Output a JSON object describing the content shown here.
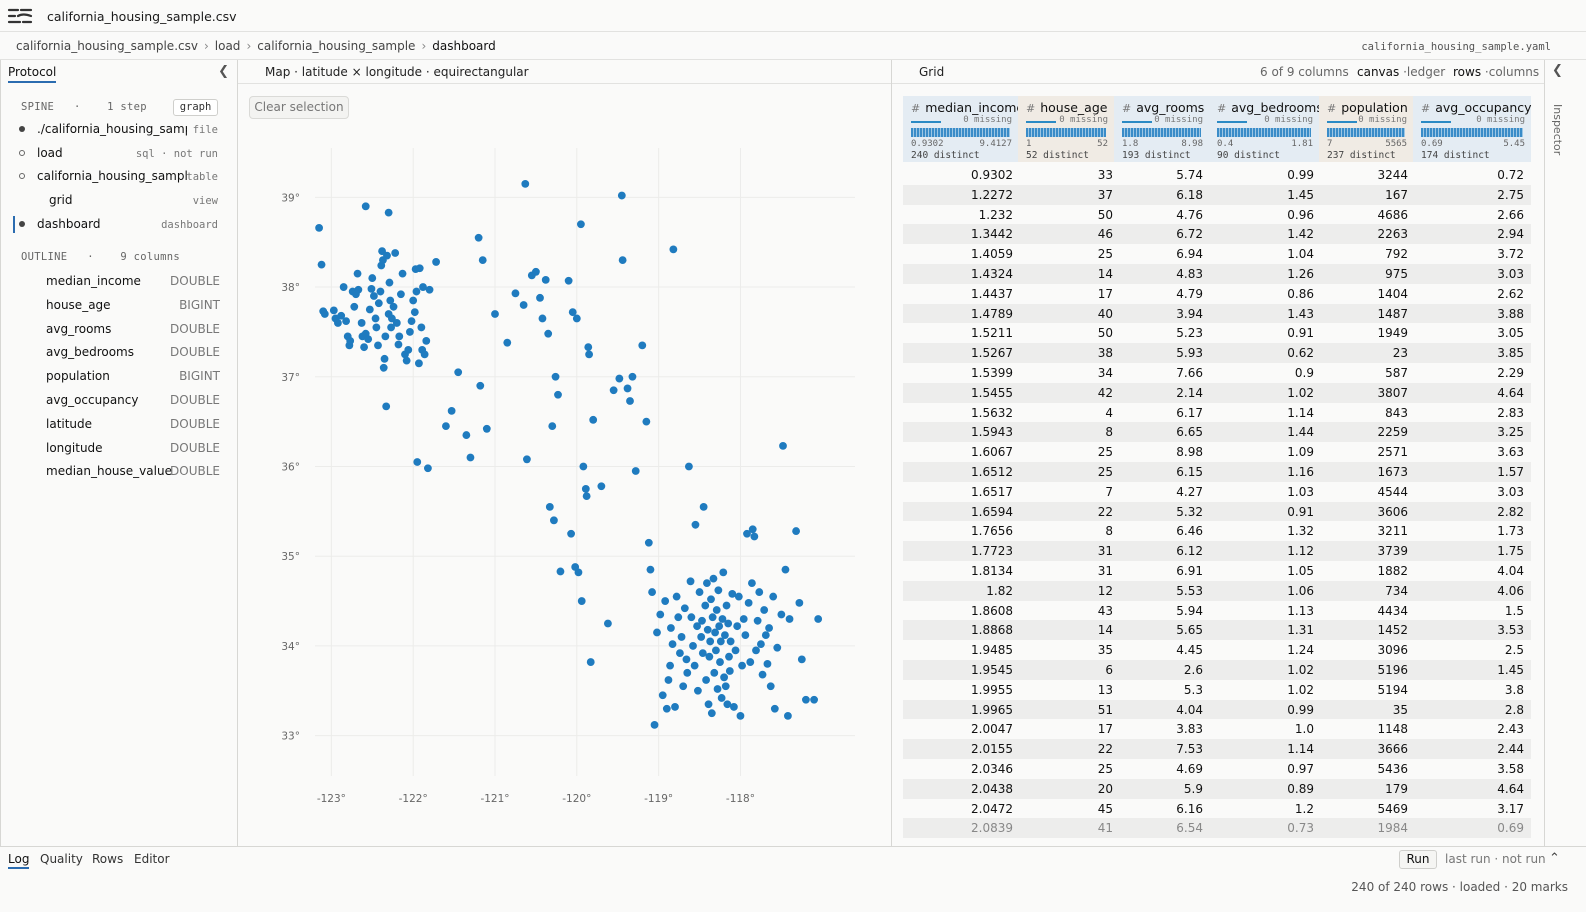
{
  "app": {
    "title": "california_housing_sample.csv",
    "logo_icon": "menu-logo-icon"
  },
  "breadcrumb": [
    "california_housing_sample.csv",
    "load",
    "california_housing_sample",
    "dashboard"
  ],
  "breadcrumb_separator": "›",
  "yaml_file": "california_housing_sample.yaml",
  "left_panel": {
    "tab": "Protocol",
    "spine_label": "SPINE",
    "spine_dot": "·",
    "spine_count": "1 step",
    "graph_button": "graph",
    "spine": [
      {
        "label": "./california_housing_sample.csv",
        "kind": "file",
        "marker": "filled"
      },
      {
        "label": "load",
        "kind": "sql · not run",
        "marker": "hollow"
      },
      {
        "label": "california_housing_sample",
        "kind": "table",
        "marker": "hollow"
      },
      {
        "label": "grid",
        "kind": "view",
        "marker": "none"
      },
      {
        "label": "dashboard",
        "kind": "dashboard",
        "marker": "active"
      }
    ],
    "outline_label": "OUTLINE",
    "outline_dot": "·",
    "outline_count": "9 columns",
    "outline": [
      {
        "name": "median_income",
        "type": "DOUBLE"
      },
      {
        "name": "house_age",
        "type": "BIGINT"
      },
      {
        "name": "avg_rooms",
        "type": "DOUBLE"
      },
      {
        "name": "avg_bedrooms",
        "type": "DOUBLE"
      },
      {
        "name": "population",
        "type": "BIGINT"
      },
      {
        "name": "avg_occupancy",
        "type": "DOUBLE"
      },
      {
        "name": "latitude",
        "type": "DOUBLE"
      },
      {
        "name": "longitude",
        "type": "DOUBLE"
      },
      {
        "name": "median_house_value",
        "type": "DOUBLE"
      }
    ]
  },
  "map": {
    "title": "Map · latitude × longitude · equirectangular",
    "clear_button": "Clear selection"
  },
  "chart_data": {
    "type": "scatter",
    "title": "Map · latitude × longitude · equirectangular",
    "xlabel": "",
    "ylabel": "",
    "xlim": [
      -123.2,
      -116.6
    ],
    "ylim": [
      32.55,
      39.55
    ],
    "x_ticks": [
      -123,
      -122,
      -121,
      -120,
      -119,
      -118
    ],
    "x_tick_labels": [
      "-123°",
      "-122°",
      "-121°",
      "-120°",
      "-119°",
      "-118°"
    ],
    "y_ticks": [
      33,
      34,
      35,
      36,
      37,
      38,
      39
    ],
    "y_tick_labels": [
      "33°",
      "34°",
      "35°",
      "36°",
      "37°",
      "38°",
      "39°"
    ],
    "grid": true,
    "color": "#1f7bbf",
    "points": [
      [
        -123.15,
        38.66
      ],
      [
        -123.12,
        38.25
      ],
      [
        -123.1,
        37.73
      ],
      [
        -123.08,
        37.7
      ],
      [
        -122.97,
        37.74
      ],
      [
        -122.95,
        37.65
      ],
      [
        -122.92,
        37.6
      ],
      [
        -122.88,
        37.68
      ],
      [
        -122.85,
        38.0
      ],
      [
        -122.82,
        37.62
      ],
      [
        -122.8,
        37.45
      ],
      [
        -122.78,
        37.35
      ],
      [
        -122.77,
        37.4
      ],
      [
        -122.74,
        37.95
      ],
      [
        -122.72,
        37.78
      ],
      [
        -122.7,
        37.92
      ],
      [
        -122.68,
        38.15
      ],
      [
        -122.67,
        37.97
      ],
      [
        -122.63,
        37.6
      ],
      [
        -122.62,
        37.45
      ],
      [
        -122.6,
        37.33
      ],
      [
        -122.58,
        37.48
      ],
      [
        -122.55,
        37.42
      ],
      [
        -122.53,
        37.75
      ],
      [
        -122.51,
        37.98
      ],
      [
        -122.5,
        38.1
      ],
      [
        -122.48,
        37.9
      ],
      [
        -122.46,
        37.65
      ],
      [
        -122.45,
        37.55
      ],
      [
        -122.43,
        37.35
      ],
      [
        -122.42,
        37.82
      ],
      [
        -122.4,
        37.95
      ],
      [
        -122.39,
        38.24
      ],
      [
        -122.38,
        38.4
      ],
      [
        -122.37,
        38.3
      ],
      [
        -122.36,
        37.1
      ],
      [
        -122.35,
        37.2
      ],
      [
        -122.34,
        37.45
      ],
      [
        -122.33,
        36.67
      ],
      [
        -122.32,
        38.35
      ],
      [
        -122.3,
        37.7
      ],
      [
        -122.29,
        38.05
      ],
      [
        -122.28,
        37.85
      ],
      [
        -122.27,
        37.55
      ],
      [
        -122.26,
        37.65
      ],
      [
        -122.24,
        37.78
      ],
      [
        -122.22,
        38.38
      ],
      [
        -122.2,
        37.6
      ],
      [
        -122.18,
        37.36
      ],
      [
        -122.17,
        37.45
      ],
      [
        -122.15,
        37.92
      ],
      [
        -122.13,
        38.15
      ],
      [
        -122.1,
        37.25
      ],
      [
        -122.08,
        37.18
      ],
      [
        -122.06,
        37.3
      ],
      [
        -122.04,
        37.5
      ],
      [
        -122.02,
        37.62
      ],
      [
        -122.0,
        37.85
      ],
      [
        -121.98,
        37.72
      ],
      [
        -121.97,
        38.2
      ],
      [
        -121.96,
        37.95
      ],
      [
        -121.95,
        36.05
      ],
      [
        -121.93,
        37.15
      ],
      [
        -121.92,
        38.21
      ],
      [
        -121.9,
        37.55
      ],
      [
        -121.89,
        37.3
      ],
      [
        -121.88,
        38.0
      ],
      [
        -121.86,
        37.25
      ],
      [
        -121.84,
        37.4
      ],
      [
        -121.82,
        35.98
      ],
      [
        -121.8,
        37.97
      ],
      [
        -121.72,
        38.28
      ],
      [
        -122.58,
        38.9
      ],
      [
        -122.3,
        38.83
      ],
      [
        -121.6,
        36.45
      ],
      [
        -121.53,
        36.62
      ],
      [
        -121.45,
        37.05
      ],
      [
        -121.35,
        36.35
      ],
      [
        -121.3,
        36.1
      ],
      [
        -121.2,
        38.55
      ],
      [
        -121.18,
        36.9
      ],
      [
        -121.15,
        38.3
      ],
      [
        -121.1,
        36.42
      ],
      [
        -121.0,
        37.7
      ],
      [
        -120.85,
        37.38
      ],
      [
        -120.75,
        37.93
      ],
      [
        -120.65,
        37.8
      ],
      [
        -120.63,
        39.15
      ],
      [
        -120.61,
        36.08
      ],
      [
        -120.55,
        38.13
      ],
      [
        -120.5,
        38.17
      ],
      [
        -120.45,
        37.88
      ],
      [
        -120.42,
        37.65
      ],
      [
        -120.38,
        38.08
      ],
      [
        -120.35,
        37.48
      ],
      [
        -120.33,
        35.55
      ],
      [
        -120.3,
        36.45
      ],
      [
        -120.28,
        35.4
      ],
      [
        -120.26,
        37.0
      ],
      [
        -120.23,
        36.8
      ],
      [
        -120.2,
        34.83
      ],
      [
        -120.1,
        38.07
      ],
      [
        -120.07,
        35.25
      ],
      [
        -120.05,
        37.72
      ],
      [
        -120.02,
        34.88
      ],
      [
        -120.0,
        37.65
      ],
      [
        -119.98,
        34.82
      ],
      [
        -119.95,
        38.7
      ],
      [
        -119.94,
        34.5
      ],
      [
        -119.92,
        36.0
      ],
      [
        -119.89,
        35.75
      ],
      [
        -119.88,
        35.67
      ],
      [
        -119.86,
        37.33
      ],
      [
        -119.85,
        37.25
      ],
      [
        -119.83,
        33.82
      ],
      [
        -119.8,
        36.52
      ],
      [
        -119.7,
        35.78
      ],
      [
        -119.62,
        34.25
      ],
      [
        -119.55,
        36.85
      ],
      [
        -119.48,
        36.98
      ],
      [
        -119.45,
        39.02
      ],
      [
        -119.44,
        38.3
      ],
      [
        -119.38,
        36.87
      ],
      [
        -119.35,
        36.73
      ],
      [
        -119.32,
        37.0
      ],
      [
        -119.28,
        35.95
      ],
      [
        -119.2,
        37.35
      ],
      [
        -119.15,
        36.5
      ],
      [
        -119.12,
        35.15
      ],
      [
        -119.1,
        34.85
      ],
      [
        -119.08,
        34.6
      ],
      [
        -119.05,
        33.12
      ],
      [
        -119.02,
        34.15
      ],
      [
        -118.98,
        34.35
      ],
      [
        -118.95,
        33.45
      ],
      [
        -118.92,
        34.5
      ],
      [
        -118.9,
        33.3
      ],
      [
        -118.88,
        33.62
      ],
      [
        -118.86,
        33.78
      ],
      [
        -118.85,
        34.2
      ],
      [
        -118.83,
        34.02
      ],
      [
        -118.82,
        38.42
      ],
      [
        -118.8,
        33.32
      ],
      [
        -118.78,
        34.55
      ],
      [
        -118.76,
        34.32
      ],
      [
        -118.74,
        33.92
      ],
      [
        -118.72,
        34.1
      ],
      [
        -118.7,
        33.55
      ],
      [
        -118.68,
        34.42
      ],
      [
        -118.66,
        33.85
      ],
      [
        -118.65,
        33.7
      ],
      [
        -118.63,
        36.0
      ],
      [
        -118.61,
        34.72
      ],
      [
        -118.6,
        34.32
      ],
      [
        -118.58,
        34.0
      ],
      [
        -118.56,
        33.78
      ],
      [
        -118.55,
        35.35
      ],
      [
        -118.53,
        34.22
      ],
      [
        -118.52,
        33.5
      ],
      [
        -118.5,
        34.6
      ],
      [
        -118.48,
        34.1
      ],
      [
        -118.47,
        34.28
      ],
      [
        -118.46,
        33.92
      ],
      [
        -118.45,
        35.55
      ],
      [
        -118.43,
        34.45
      ],
      [
        -118.42,
        33.62
      ],
      [
        -118.41,
        34.7
      ],
      [
        -118.4,
        34.18
      ],
      [
        -118.39,
        33.35
      ],
      [
        -118.38,
        33.88
      ],
      [
        -118.37,
        34.05
      ],
      [
        -118.36,
        34.52
      ],
      [
        -118.35,
        33.25
      ],
      [
        -118.34,
        34.32
      ],
      [
        -118.33,
        34.75
      ],
      [
        -118.32,
        33.7
      ],
      [
        -118.31,
        34.15
      ],
      [
        -118.3,
        33.95
      ],
      [
        -118.29,
        34.4
      ],
      [
        -118.28,
        33.52
      ],
      [
        -118.27,
        34.62
      ],
      [
        -118.26,
        34.22
      ],
      [
        -118.25,
        33.82
      ],
      [
        -118.24,
        34.05
      ],
      [
        -118.23,
        33.42
      ],
      [
        -118.22,
        34.3
      ],
      [
        -118.21,
        34.82
      ],
      [
        -118.2,
        33.65
      ],
      [
        -118.19,
        34.12
      ],
      [
        -118.18,
        33.55
      ],
      [
        -118.17,
        34.45
      ],
      [
        -118.16,
        33.35
      ],
      [
        -118.15,
        34.25
      ],
      [
        -118.14,
        33.88
      ],
      [
        -118.13,
        33.72
      ],
      [
        -118.12,
        34.05
      ],
      [
        -118.1,
        34.58
      ],
      [
        -118.08,
        33.32
      ],
      [
        -118.06,
        33.95
      ],
      [
        -118.04,
        34.22
      ],
      [
        -118.02,
        34.55
      ],
      [
        -118.0,
        33.22
      ],
      [
        -117.98,
        33.78
      ],
      [
        -117.96,
        34.3
      ],
      [
        -117.94,
        34.12
      ],
      [
        -117.92,
        35.25
      ],
      [
        -117.9,
        34.48
      ],
      [
        -117.88,
        33.82
      ],
      [
        -117.86,
        34.7
      ],
      [
        -117.85,
        35.3
      ],
      [
        -117.83,
        35.22
      ],
      [
        -117.81,
        33.95
      ],
      [
        -117.79,
        34.28
      ],
      [
        -117.77,
        34.6
      ],
      [
        -117.75,
        34.02
      ],
      [
        -117.73,
        33.68
      ],
      [
        -117.71,
        34.4
      ],
      [
        -117.69,
        34.12
      ],
      [
        -117.67,
        33.8
      ],
      [
        -117.65,
        34.2
      ],
      [
        -117.63,
        33.55
      ],
      [
        -117.6,
        34.55
      ],
      [
        -117.58,
        33.3
      ],
      [
        -117.55,
        33.98
      ],
      [
        -117.5,
        34.35
      ],
      [
        -117.48,
        36.23
      ],
      [
        -117.45,
        34.85
      ],
      [
        -117.42,
        33.22
      ],
      [
        -117.4,
        34.3
      ],
      [
        -117.32,
        35.28
      ],
      [
        -117.28,
        34.48
      ],
      [
        -117.25,
        33.85
      ],
      [
        -117.2,
        33.4
      ],
      [
        -117.1,
        33.4
      ],
      [
        -117.05,
        34.3
      ]
    ]
  },
  "grid": {
    "title": "Grid",
    "col_count": "6 of 9 columns",
    "canvas_toggle": {
      "active": "canvas",
      "sep": "·",
      "other": "ledger"
    },
    "rows_toggle": {
      "active": "rows",
      "sep": "·",
      "other": "columns"
    },
    "hash": "#",
    "columns": [
      {
        "name": "median_income",
        "missing": "0 missing",
        "min": "0.9302",
        "max": "9.4127",
        "distinct": "240 distinct"
      },
      {
        "name": "house_age",
        "missing": "0 missing",
        "min": "1",
        "max": "52",
        "distinct": "52 distinct"
      },
      {
        "name": "avg_rooms",
        "missing": "0 missing",
        "min": "1.8",
        "max": "8.98",
        "distinct": "193 distinct"
      },
      {
        "name": "avg_bedrooms",
        "missing": "0 missing",
        "min": "0.4",
        "max": "1.81",
        "distinct": "90 distinct"
      },
      {
        "name": "population",
        "missing": "0 missing",
        "min": "7",
        "max": "5565",
        "distinct": "237 distinct"
      },
      {
        "name": "avg_occupancy",
        "missing": "0 missing",
        "min": "0.69",
        "max": "5.45",
        "distinct": "174 distinct"
      }
    ],
    "rows": [
      [
        "0.9302",
        "33",
        "5.74",
        "0.99",
        "3244",
        "0.72"
      ],
      [
        "1.2272",
        "37",
        "6.18",
        "1.45",
        "167",
        "2.75"
      ],
      [
        "1.232",
        "50",
        "4.76",
        "0.96",
        "4686",
        "2.66"
      ],
      [
        "1.3442",
        "46",
        "6.72",
        "1.42",
        "2263",
        "2.94"
      ],
      [
        "1.4059",
        "25",
        "6.94",
        "1.04",
        "792",
        "3.72"
      ],
      [
        "1.4324",
        "14",
        "4.83",
        "1.26",
        "975",
        "3.03"
      ],
      [
        "1.4437",
        "17",
        "4.79",
        "0.86",
        "1404",
        "2.62"
      ],
      [
        "1.4789",
        "40",
        "3.94",
        "1.43",
        "1487",
        "3.88"
      ],
      [
        "1.5211",
        "50",
        "5.23",
        "0.91",
        "1949",
        "3.05"
      ],
      [
        "1.5267",
        "38",
        "5.93",
        "0.62",
        "23",
        "3.85"
      ],
      [
        "1.5399",
        "34",
        "7.66",
        "0.9",
        "587",
        "2.29"
      ],
      [
        "1.5455",
        "42",
        "2.14",
        "1.02",
        "3807",
        "4.64"
      ],
      [
        "1.5632",
        "4",
        "6.17",
        "1.14",
        "843",
        "2.83"
      ],
      [
        "1.5943",
        "8",
        "6.65",
        "1.44",
        "2259",
        "3.25"
      ],
      [
        "1.6067",
        "25",
        "8.98",
        "1.09",
        "2571",
        "3.63"
      ],
      [
        "1.6512",
        "25",
        "6.15",
        "1.16",
        "1673",
        "1.57"
      ],
      [
        "1.6517",
        "7",
        "4.27",
        "1.03",
        "4544",
        "3.03"
      ],
      [
        "1.6594",
        "22",
        "5.32",
        "0.91",
        "3606",
        "2.82"
      ],
      [
        "1.7656",
        "8",
        "6.46",
        "1.32",
        "3211",
        "1.73"
      ],
      [
        "1.7723",
        "31",
        "6.12",
        "1.12",
        "3739",
        "1.75"
      ],
      [
        "1.8134",
        "31",
        "6.91",
        "1.05",
        "1882",
        "4.04"
      ],
      [
        "1.82",
        "12",
        "5.53",
        "1.06",
        "734",
        "4.06"
      ],
      [
        "1.8608",
        "43",
        "5.94",
        "1.13",
        "4434",
        "1.5"
      ],
      [
        "1.8868",
        "14",
        "5.65",
        "1.31",
        "1452",
        "3.53"
      ],
      [
        "1.9485",
        "35",
        "4.45",
        "1.24",
        "3096",
        "2.5"
      ],
      [
        "1.9545",
        "6",
        "2.6",
        "1.02",
        "5196",
        "1.45"
      ],
      [
        "1.9955",
        "13",
        "5.3",
        "1.02",
        "5194",
        "3.8"
      ],
      [
        "1.9965",
        "51",
        "4.04",
        "0.99",
        "35",
        "2.8"
      ],
      [
        "2.0047",
        "17",
        "3.83",
        "1.0",
        "1148",
        "2.43"
      ],
      [
        "2.0155",
        "22",
        "7.53",
        "1.14",
        "3666",
        "2.44"
      ],
      [
        "2.0346",
        "25",
        "4.69",
        "0.97",
        "5436",
        "3.58"
      ],
      [
        "2.0438",
        "20",
        "5.9",
        "0.89",
        "179",
        "4.64"
      ],
      [
        "2.0472",
        "45",
        "6.16",
        "1.2",
        "5469",
        "3.17"
      ],
      [
        "2.0839",
        "41",
        "6.54",
        "0.73",
        "1984",
        "0.69"
      ]
    ]
  },
  "inspector": {
    "label": "Inspector"
  },
  "bottom": {
    "tabs": [
      "Log",
      "Quality",
      "Rows",
      "Editor"
    ],
    "run_button": "Run",
    "last_run": "last run · not run",
    "status": "240 of 240 rows · loaded · 20 marks"
  },
  "colors": {
    "accent": "#2b6cb0",
    "point": "#1f7bbf",
    "row_stripe": "#ededec"
  },
  "icons": {
    "collapse_left": "chevron-left-icon",
    "collapse_right": "chevron-left-icon",
    "expand_bottom": "chevron-up-icon"
  }
}
